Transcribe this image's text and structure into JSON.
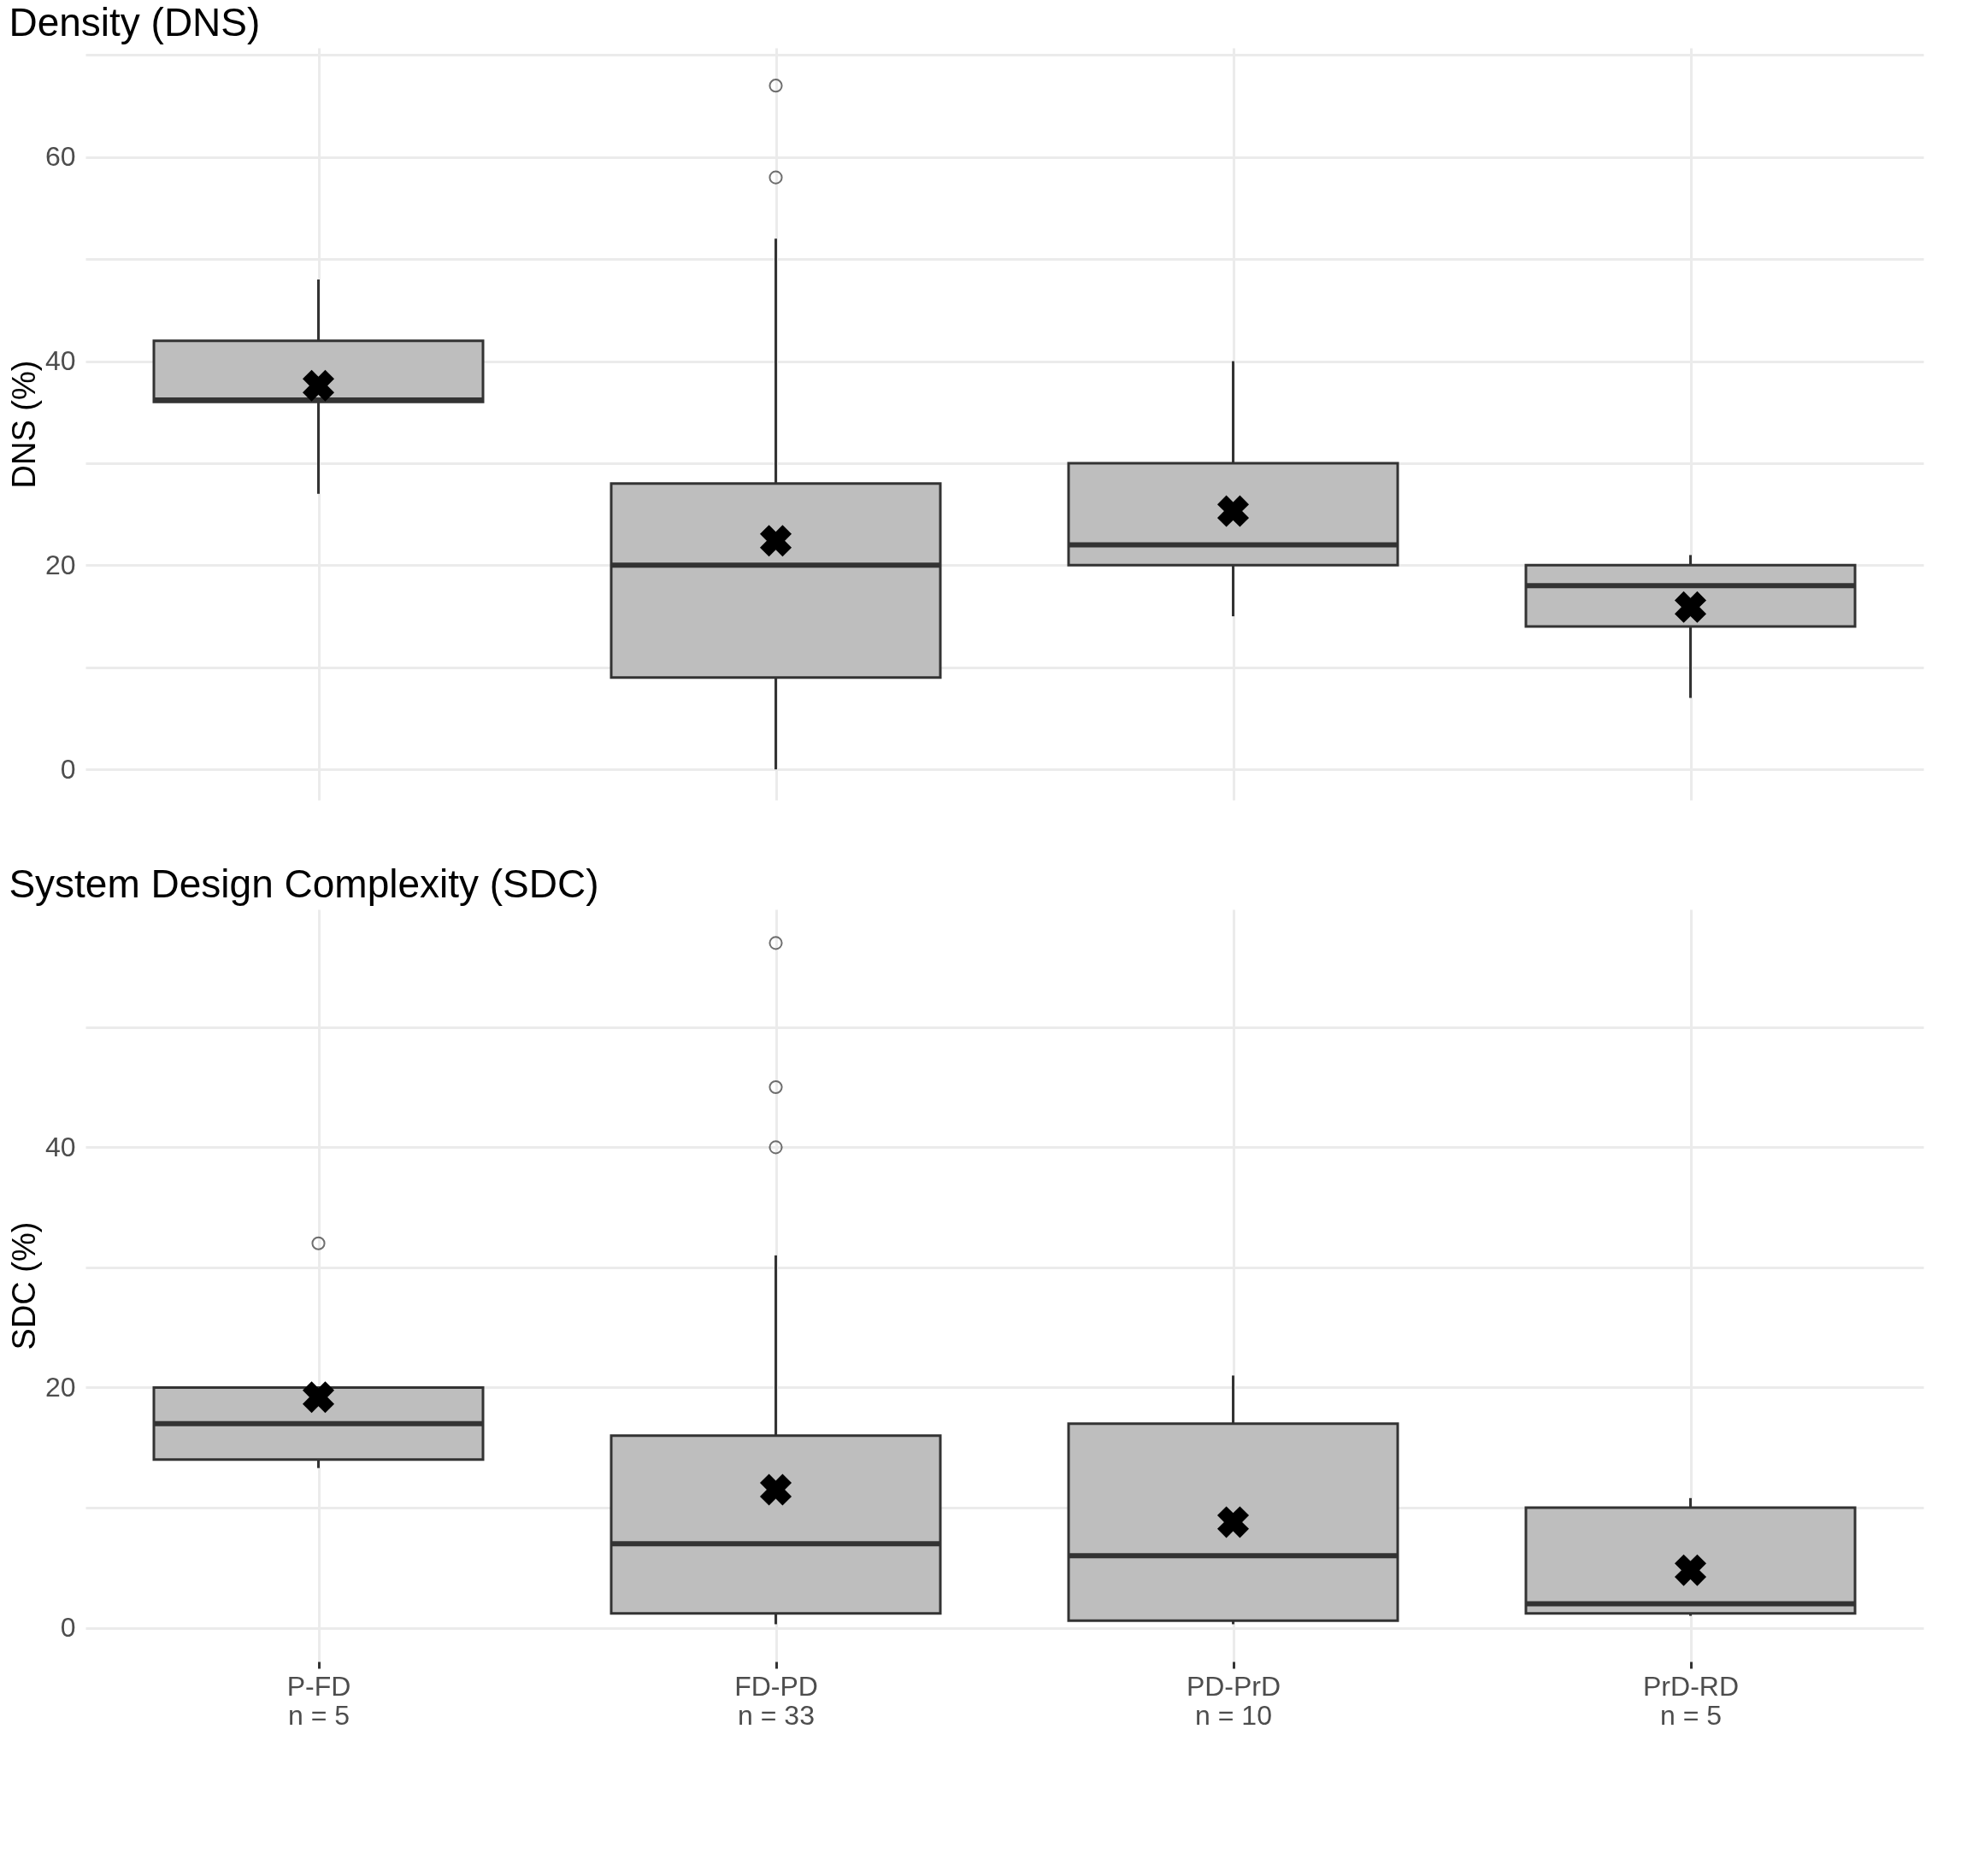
{
  "chart_data": [
    {
      "type": "box",
      "title": "Density (DNS)",
      "ylabel": "DNS (%)",
      "categories": [
        null,
        null,
        null,
        null
      ],
      "color": "#bebebe",
      "boxes": [
        {
          "low": 27,
          "q1": 36,
          "median": 36.2,
          "q3": 42,
          "high": 48,
          "mean": 37.6
        },
        {
          "low": 0,
          "q1": 9,
          "median": 20,
          "q3": 28,
          "high": 52,
          "mean": 22.4,
          "outliers": [
            67,
            58
          ]
        },
        {
          "low": 15,
          "q1": 20,
          "median": 22,
          "q3": 30,
          "high": 40,
          "mean": 25.3
        },
        {
          "low": 7,
          "q1": 14,
          "median": 18,
          "q3": 20,
          "high": 21,
          "mean": 15.9
        }
      ],
      "ylim": [
        -3,
        70.7
      ],
      "yticks": [
        0,
        {
          "value": 10,
          "label": null
        },
        20,
        {
          "value": 30,
          "label": null
        },
        40,
        {
          "value": 50,
          "label": null
        },
        60,
        {
          "value": 70,
          "label": null
        }
      ],
      "grid": true,
      "tick_labels": "y",
      "marker": "cross"
    },
    {
      "type": "box",
      "title": "System Design Complexity (SDC)",
      "ylabel": "SDC (%)",
      "categories": [
        "P-FD\nn = 5",
        "FD-PD\nn = 33",
        "PD-PrD\nn = 10",
        "PrD-RD\nn = 5"
      ],
      "color": "#bebebe",
      "boxes": [
        {
          "low": 13.3,
          "q1": 14,
          "median": 17,
          "q3": 20,
          "high": 20,
          "mean": 19.2,
          "outliers": [
            32
          ]
        },
        {
          "low": 0.3,
          "q1": 1.2,
          "median": 7,
          "q3": 16,
          "high": 31,
          "mean": 11.5,
          "outliers": [
            57,
            45,
            40
          ]
        },
        {
          "low": 0.3,
          "q1": 0.6,
          "median": 6,
          "q3": 17,
          "high": 21,
          "mean": 8.8
        },
        {
          "low": 1,
          "q1": 1.2,
          "median": 2,
          "q3": 10,
          "high": 10.8,
          "mean": 4.8
        }
      ],
      "ylim": [
        -2.8,
        59.8
      ],
      "yticks": [
        0,
        {
          "value": 10,
          "label": null
        },
        20,
        {
          "value": 30,
          "label": null
        },
        40,
        {
          "value": 50,
          "label": null
        }
      ],
      "grid": true,
      "marker": "cross"
    }
  ]
}
